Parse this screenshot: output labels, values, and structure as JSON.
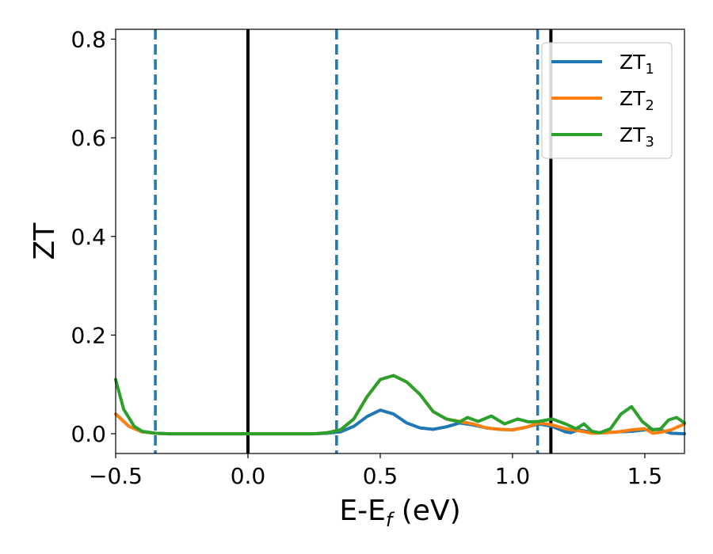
{
  "chart_data": {
    "type": "line",
    "xlabel": {
      "base": "E-E",
      "sub": "f",
      "unit": " (eV)"
    },
    "ylabel": "ZT",
    "xlim": [
      -0.5,
      1.65
    ],
    "ylim": [
      -0.04,
      0.82
    ],
    "xticks": [
      {
        "value": -0.5,
        "label": "−0.5"
      },
      {
        "value": 0.0,
        "label": "0.0"
      },
      {
        "value": 0.5,
        "label": "0.5"
      },
      {
        "value": 1.0,
        "label": "1.0"
      },
      {
        "value": 1.5,
        "label": "1.5"
      }
    ],
    "yticks": [
      {
        "value": 0.0,
        "label": "0.0"
      },
      {
        "value": 0.2,
        "label": "0.2"
      },
      {
        "value": 0.4,
        "label": "0.4"
      },
      {
        "value": 0.6,
        "label": "0.6"
      },
      {
        "value": 0.8,
        "label": "0.8"
      }
    ],
    "grid": false,
    "legend_position": "top-right",
    "vlines": [
      {
        "x": -0.35,
        "style": "dashed",
        "color": "#1f77b4"
      },
      {
        "x": 0.0,
        "style": "solid",
        "color": "#000000"
      },
      {
        "x": 0.335,
        "style": "dashed",
        "color": "#1f77b4"
      },
      {
        "x": 1.095,
        "style": "dashed",
        "color": "#1f77b4"
      },
      {
        "x": 1.145,
        "style": "solid",
        "color": "#000000"
      }
    ],
    "series": [
      {
        "name": "ZT",
        "sub": "1",
        "color": "#1f77b4",
        "points": [
          [
            -0.5,
            0.04
          ],
          [
            -0.45,
            0.015
          ],
          [
            -0.4,
            0.004
          ],
          [
            -0.35,
            0.001
          ],
          [
            -0.3,
            0.0
          ],
          [
            0.0,
            0.0
          ],
          [
            0.25,
            0.0
          ],
          [
            0.3,
            0.001
          ],
          [
            0.35,
            0.004
          ],
          [
            0.4,
            0.015
          ],
          [
            0.45,
            0.035
          ],
          [
            0.5,
            0.048
          ],
          [
            0.55,
            0.04
          ],
          [
            0.6,
            0.022
          ],
          [
            0.65,
            0.012
          ],
          [
            0.7,
            0.009
          ],
          [
            0.75,
            0.014
          ],
          [
            0.8,
            0.022
          ],
          [
            0.85,
            0.018
          ],
          [
            0.9,
            0.012
          ],
          [
            0.95,
            0.009
          ],
          [
            1.0,
            0.008
          ],
          [
            1.05,
            0.013
          ],
          [
            1.1,
            0.02
          ],
          [
            1.15,
            0.015
          ],
          [
            1.2,
            0.004
          ],
          [
            1.22,
            0.002
          ],
          [
            1.25,
            0.008
          ],
          [
            1.3,
            0.003
          ],
          [
            1.35,
            0.002
          ],
          [
            1.4,
            0.004
          ],
          [
            1.45,
            0.005
          ],
          [
            1.5,
            0.008
          ],
          [
            1.55,
            0.009
          ],
          [
            1.6,
            0.001
          ],
          [
            1.65,
            0.0
          ]
        ]
      },
      {
        "name": "ZT",
        "sub": "2",
        "color": "#ff7f0e",
        "points": [
          [
            -0.5,
            0.04
          ],
          [
            -0.45,
            0.015
          ],
          [
            -0.4,
            0.004
          ],
          [
            -0.35,
            0.001
          ],
          [
            -0.3,
            0.0
          ],
          [
            0.0,
            0.0
          ],
          [
            0.25,
            0.0
          ],
          [
            0.3,
            0.002
          ],
          [
            0.35,
            0.008
          ],
          [
            0.4,
            0.03
          ],
          [
            0.45,
            0.075
          ],
          [
            0.5,
            0.11
          ],
          [
            0.55,
            0.118
          ],
          [
            0.6,
            0.105
          ],
          [
            0.65,
            0.08
          ],
          [
            0.7,
            0.045
          ],
          [
            0.75,
            0.03
          ],
          [
            0.8,
            0.025
          ],
          [
            0.85,
            0.02
          ],
          [
            0.9,
            0.012
          ],
          [
            0.95,
            0.009
          ],
          [
            1.0,
            0.008
          ],
          [
            1.05,
            0.013
          ],
          [
            1.1,
            0.022
          ],
          [
            1.15,
            0.018
          ],
          [
            1.2,
            0.01
          ],
          [
            1.25,
            0.006
          ],
          [
            1.3,
            0.001
          ],
          [
            1.35,
            0.002
          ],
          [
            1.4,
            0.004
          ],
          [
            1.45,
            0.008
          ],
          [
            1.5,
            0.01
          ],
          [
            1.53,
            0.001
          ],
          [
            1.56,
            0.003
          ],
          [
            1.6,
            0.008
          ],
          [
            1.65,
            0.02
          ]
        ]
      },
      {
        "name": "ZT",
        "sub": "3",
        "color": "#2ca02c",
        "points": [
          [
            -0.5,
            0.11
          ],
          [
            -0.47,
            0.05
          ],
          [
            -0.43,
            0.015
          ],
          [
            -0.4,
            0.005
          ],
          [
            -0.35,
            0.001
          ],
          [
            -0.3,
            0.0
          ],
          [
            0.0,
            0.0
          ],
          [
            0.25,
            0.0
          ],
          [
            0.3,
            0.002
          ],
          [
            0.35,
            0.008
          ],
          [
            0.4,
            0.03
          ],
          [
            0.45,
            0.075
          ],
          [
            0.5,
            0.11
          ],
          [
            0.55,
            0.118
          ],
          [
            0.6,
            0.105
          ],
          [
            0.65,
            0.08
          ],
          [
            0.7,
            0.045
          ],
          [
            0.75,
            0.03
          ],
          [
            0.8,
            0.024
          ],
          [
            0.83,
            0.033
          ],
          [
            0.87,
            0.025
          ],
          [
            0.92,
            0.036
          ],
          [
            0.97,
            0.02
          ],
          [
            1.02,
            0.03
          ],
          [
            1.06,
            0.024
          ],
          [
            1.1,
            0.025
          ],
          [
            1.15,
            0.03
          ],
          [
            1.2,
            0.02
          ],
          [
            1.24,
            0.01
          ],
          [
            1.27,
            0.02
          ],
          [
            1.3,
            0.005
          ],
          [
            1.33,
            0.002
          ],
          [
            1.37,
            0.01
          ],
          [
            1.41,
            0.04
          ],
          [
            1.45,
            0.055
          ],
          [
            1.49,
            0.025
          ],
          [
            1.53,
            0.008
          ],
          [
            1.56,
            0.01
          ],
          [
            1.59,
            0.028
          ],
          [
            1.62,
            0.033
          ],
          [
            1.65,
            0.022
          ]
        ]
      }
    ]
  }
}
